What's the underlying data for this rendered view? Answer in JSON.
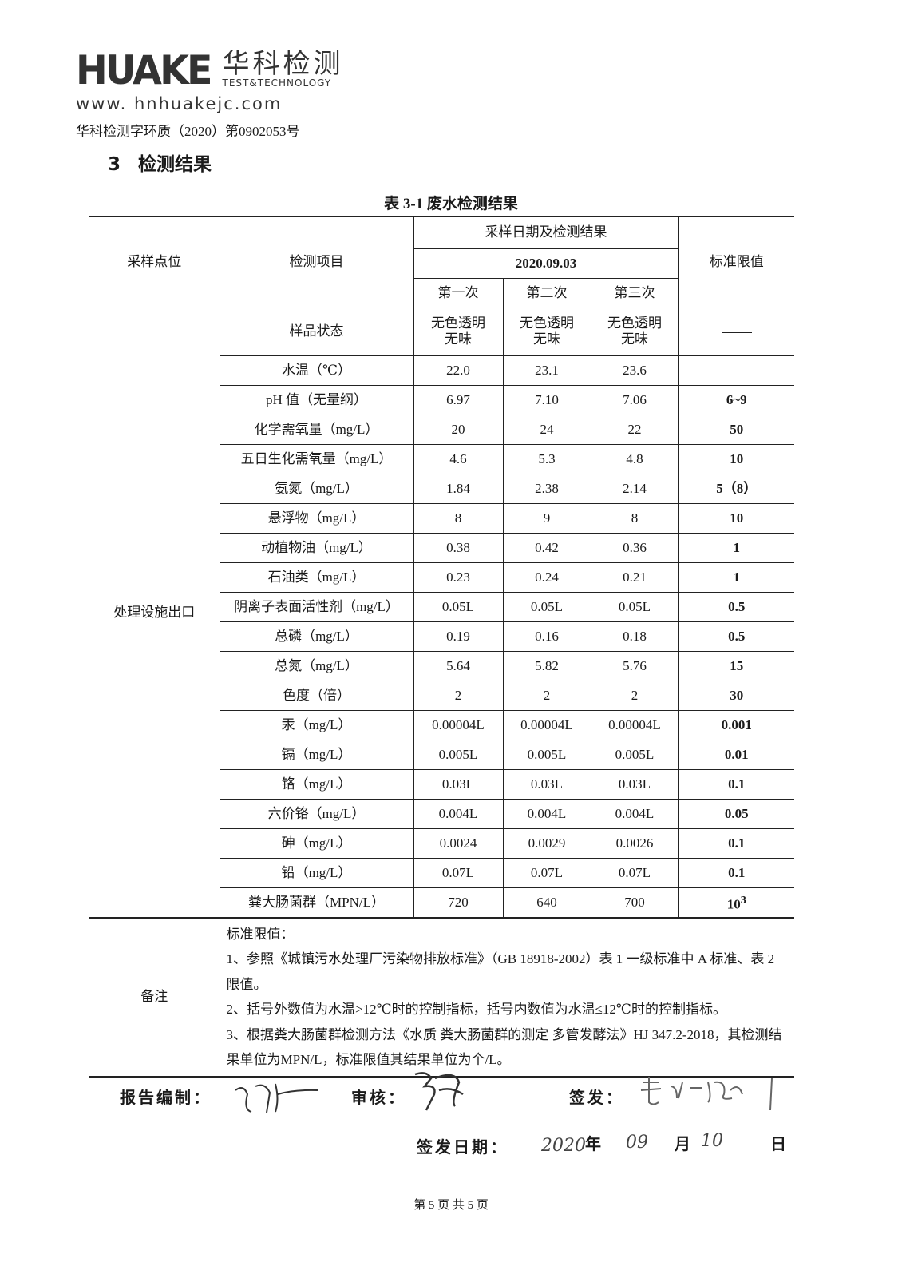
{
  "header": {
    "logo_mark": "HUAKE",
    "logo_cn": "华科检测",
    "logo_en": "TEST&TECHNOLOGY",
    "url": "www. hnhuakejc.com",
    "doc_number": "华科检测字环质（2020）第0902053号"
  },
  "section": {
    "number": "3",
    "title": "检测结果"
  },
  "table": {
    "caption": "表 3-1  废水检测结果",
    "headers": {
      "site": "采样点位",
      "item": "检测项目",
      "group": "采样日期及检测结果",
      "date": "2020.09.03",
      "runs": [
        "第一次",
        "第二次",
        "第三次"
      ],
      "limit": "标准限值"
    },
    "site": "处理设施出口",
    "rows": [
      {
        "item": "样品状态",
        "values": [
          "无色透明\n无味",
          "无色透明\n无味",
          "无色透明\n无味"
        ],
        "limit": "——"
      },
      {
        "item": "水温（℃）",
        "values": [
          "22.0",
          "23.1",
          "23.6"
        ],
        "limit": "——"
      },
      {
        "item": "pH 值（无量纲）",
        "values": [
          "6.97",
          "7.10",
          "7.06"
        ],
        "limit": "6~9"
      },
      {
        "item": "化学需氧量（mg/L）",
        "values": [
          "20",
          "24",
          "22"
        ],
        "limit": "50"
      },
      {
        "item": "五日生化需氧量（mg/L）",
        "values": [
          "4.6",
          "5.3",
          "4.8"
        ],
        "limit": "10"
      },
      {
        "item": "氨氮（mg/L）",
        "values": [
          "1.84",
          "2.38",
          "2.14"
        ],
        "limit": "5（8）"
      },
      {
        "item": "悬浮物（mg/L）",
        "values": [
          "8",
          "9",
          "8"
        ],
        "limit": "10"
      },
      {
        "item": "动植物油（mg/L）",
        "values": [
          "0.38",
          "0.42",
          "0.36"
        ],
        "limit": "1"
      },
      {
        "item": "石油类（mg/L）",
        "values": [
          "0.23",
          "0.24",
          "0.21"
        ],
        "limit": "1"
      },
      {
        "item": "阴离子表面活性剂（mg/L）",
        "values": [
          "0.05L",
          "0.05L",
          "0.05L"
        ],
        "limit": "0.5"
      },
      {
        "item": "总磷（mg/L）",
        "values": [
          "0.19",
          "0.16",
          "0.18"
        ],
        "limit": "0.5"
      },
      {
        "item": "总氮（mg/L）",
        "values": [
          "5.64",
          "5.82",
          "5.76"
        ],
        "limit": "15"
      },
      {
        "item": "色度（倍）",
        "values": [
          "2",
          "2",
          "2"
        ],
        "limit": "30"
      },
      {
        "item": "汞（mg/L）",
        "values": [
          "0.00004L",
          "0.00004L",
          "0.00004L"
        ],
        "limit": "0.001"
      },
      {
        "item": "镉（mg/L）",
        "values": [
          "0.005L",
          "0.005L",
          "0.005L"
        ],
        "limit": "0.01"
      },
      {
        "item": "铬（mg/L）",
        "values": [
          "0.03L",
          "0.03L",
          "0.03L"
        ],
        "limit": "0.1"
      },
      {
        "item": "六价铬（mg/L）",
        "values": [
          "0.004L",
          "0.004L",
          "0.004L"
        ],
        "limit": "0.05"
      },
      {
        "item": "砷（mg/L）",
        "values": [
          "0.0024",
          "0.0029",
          "0.0026"
        ],
        "limit": "0.1"
      },
      {
        "item": "铅（mg/L）",
        "values": [
          "0.07L",
          "0.07L",
          "0.07L"
        ],
        "limit": "0.1"
      },
      {
        "item": "粪大肠菌群（MPN/L）",
        "values": [
          "720",
          "640",
          "700"
        ],
        "limit": "10",
        "limit_sup": "3"
      }
    ],
    "notes_label": "备注",
    "notes": [
      "标准限值：",
      "1、参照《城镇污水处理厂污染物排放标准》（GB 18918-2002）表 1 一级标准中 A 标准、表 2 限值。",
      "2、括号外数值为水温>12℃时的控制指标，括号内数值为水温≤12℃时的控制指标。",
      "3、根据粪大肠菌群检测方法《水质  粪大肠菌群的测定  多管发酵法》HJ 347.2-2018，其检测结果单位为MPN/L，标准限值其结果单位为个/L。"
    ]
  },
  "signatures": {
    "compiled_label": "报告编制：",
    "reviewed_label": "审核：",
    "issued_label": "签发：",
    "date_label": "签发日期：",
    "date_year": "2020",
    "year_unit": "年",
    "date_month": "09",
    "month_unit": "月",
    "date_day": "10",
    "day_unit": "日"
  },
  "footer": {
    "page": "第 5 页 共 5 页"
  }
}
